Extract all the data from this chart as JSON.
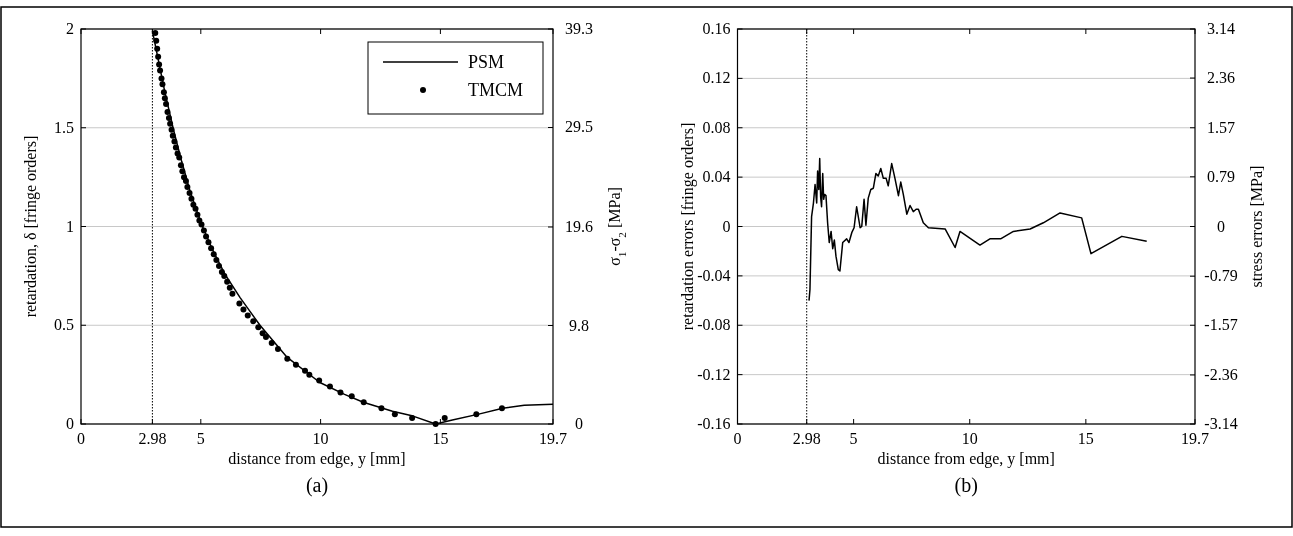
{
  "chart_data": [
    {
      "type": "scatter",
      "xlabel": "distance from edge, y [mm]",
      "ylabel": "retardation, δ [fringe orders]",
      "y2label": "σ$_{1}$-σ$_{2}$ [MPa]",
      "annotations": [
        "(a)"
      ],
      "xlim": [
        0,
        19.7
      ],
      "xticks": [
        0,
        2.98,
        5,
        10,
        15,
        19.7
      ],
      "ylim": [
        0,
        2
      ],
      "yticks": [
        0,
        0.5,
        1,
        1.5,
        2
      ],
      "y2lim": [
        0,
        39.3
      ],
      "y2ticks": [
        0,
        9.8,
        19.6,
        29.5,
        39.3
      ],
      "grid": "y",
      "legend": "top right",
      "ref_lines": [
        {
          "axis": "x",
          "value": 2.98,
          "line_style": "dotted",
          "color": "#000000"
        }
      ],
      "series": [
        {
          "name": "PSM",
          "type": "line",
          "color": "#000000",
          "line_style": "solid",
          "x": [
            2.98,
            3.5,
            3.86,
            4.2,
            4.55,
            5,
            5.5,
            6,
            6.64,
            7.47,
            8.58,
            9.97,
            11,
            11.78,
            13,
            13.86,
            14.8,
            15.5,
            16.6,
            17.6,
            18.5,
            19.7
          ],
          "values": [
            1.99,
            1.68,
            1.49,
            1.33,
            1.18,
            1.02,
            0.88,
            0.76,
            0.64,
            0.5,
            0.34,
            0.21,
            0.15,
            0.11,
            0.065,
            0.04,
            0,
            0.02,
            0.05,
            0.08,
            0.095,
            0.1
          ]
        },
        {
          "name": "TMCM",
          "marker": "circle",
          "color": "#000000",
          "x": [
            3.1,
            3.14,
            3.18,
            3.22,
            3.26,
            3.3,
            3.36,
            3.4,
            3.46,
            3.5,
            3.55,
            3.61,
            3.67,
            3.72,
            3.78,
            3.83,
            3.9,
            3.96,
            4.03,
            4.1,
            4.17,
            4.23,
            4.3,
            4.38,
            4.44,
            4.53,
            4.61,
            4.69,
            4.78,
            4.86,
            4.94,
            5.03,
            5.13,
            5.22,
            5.32,
            5.43,
            5.54,
            5.65,
            5.76,
            5.88,
            5.98,
            6.1,
            6.21,
            6.32,
            6.61,
            6.78,
            6.96,
            7.19,
            7.4,
            7.58,
            7.72,
            7.96,
            8.22,
            8.61,
            8.97,
            9.35,
            9.53,
            9.94,
            10.39,
            10.83,
            11.3,
            11.8,
            12.54,
            13.1,
            13.82,
            14.8,
            15.18,
            16.5,
            17.57
          ],
          "values": [
            1.98,
            1.94,
            1.9,
            1.86,
            1.82,
            1.79,
            1.75,
            1.72,
            1.68,
            1.65,
            1.62,
            1.58,
            1.55,
            1.52,
            1.49,
            1.46,
            1.43,
            1.4,
            1.37,
            1.35,
            1.31,
            1.28,
            1.25,
            1.23,
            1.2,
            1.17,
            1.14,
            1.11,
            1.09,
            1.06,
            1.03,
            1.01,
            0.98,
            0.95,
            0.92,
            0.89,
            0.86,
            0.83,
            0.8,
            0.77,
            0.75,
            0.72,
            0.69,
            0.66,
            0.61,
            0.58,
            0.55,
            0.52,
            0.49,
            0.46,
            0.44,
            0.41,
            0.38,
            0.33,
            0.3,
            0.27,
            0.25,
            0.22,
            0.19,
            0.16,
            0.14,
            0.11,
            0.08,
            0.05,
            0.03,
            0,
            0.03,
            0.05,
            0.08
          ]
        }
      ]
    },
    {
      "type": "line",
      "xlabel": "distance from edge, y [mm]",
      "ylabel": "retardation errors [fringe orders]",
      "y2label": "stress errors [MPa]",
      "annotations": [
        "(b)"
      ],
      "xlim": [
        0,
        19.7
      ],
      "xticks": [
        0,
        2.98,
        5,
        10,
        15,
        19.7
      ],
      "ylim": [
        -0.16,
        0.16
      ],
      "yticks": [
        -0.16,
        -0.12,
        -0.08,
        -0.04,
        0,
        0.04,
        0.08,
        0.12,
        0.16
      ],
      "y2lim": [
        -3.14,
        3.14
      ],
      "y2ticks": [
        -3.14,
        -2.36,
        -1.57,
        -0.79,
        0,
        0.79,
        1.57,
        2.36,
        3.14
      ],
      "grid": "y",
      "ref_lines": [
        {
          "axis": "x",
          "value": 2.98,
          "line_style": "dotted",
          "color": "#000000"
        }
      ],
      "series": [
        {
          "color": "#000000",
          "line_style": "solid",
          "x": [
            3.08,
            3.12,
            3.19,
            3.27,
            3.34,
            3.41,
            3.45,
            3.5,
            3.54,
            3.58,
            3.62,
            3.67,
            3.71,
            3.75,
            3.81,
            3.88,
            3.95,
            4.03,
            4.1,
            4.17,
            4.24,
            4.34,
            4.41,
            4.53,
            4.7,
            4.8,
            4.92,
            5.02,
            5.13,
            5.28,
            5.35,
            5.45,
            5.53,
            5.63,
            5.74,
            5.85,
            5.96,
            6.06,
            6.17,
            6.28,
            6.4,
            6.49,
            6.64,
            6.78,
            6.93,
            7.03,
            7.14,
            7.29,
            7.43,
            7.57,
            7.69,
            7.79,
            8,
            8.22,
            8.94,
            9.37,
            9.58,
            10.44,
            10.87,
            11.33,
            11.88,
            12.6,
            13.17,
            13.89,
            14.82,
            15.22,
            16.55,
            17.62
          ],
          "values": [
            -0.06,
            -0.051,
            0.008,
            0.019,
            0.034,
            0.019,
            0.045,
            0.03,
            0.055,
            0.024,
            0.016,
            0.043,
            0.022,
            0.026,
            0.025,
            0.003,
            -0.013,
            -0.004,
            -0.018,
            -0.011,
            -0.024,
            -0.035,
            -0.036,
            -0.013,
            -0.01,
            -0.013,
            -0.005,
            -0.001,
            0.016,
            -0.001,
            0,
            0.022,
            0.001,
            0.023,
            0.03,
            0.031,
            0.043,
            0.041,
            0.047,
            0.039,
            0.039,
            0.033,
            0.051,
            0.039,
            0.025,
            0.036,
            0.026,
            0.01,
            0.017,
            0.012,
            0.014,
            0.014,
            0.003,
            -0.001,
            -0.002,
            -0.017,
            -0.004,
            -0.015,
            -0.01,
            -0.01,
            -0.004,
            -0.002,
            0.003,
            0.011,
            0.007,
            -0.022,
            -0.008,
            -0.012
          ]
        }
      ]
    }
  ]
}
